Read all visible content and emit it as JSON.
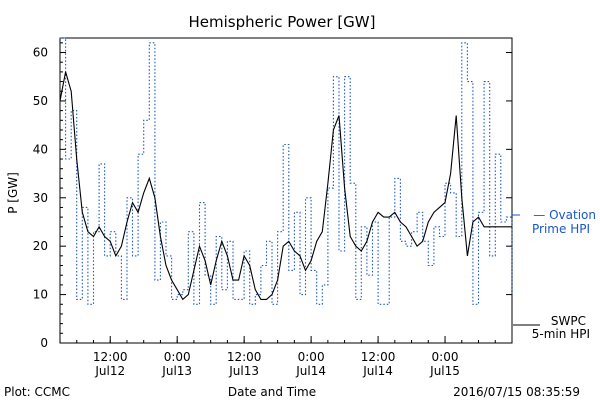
{
  "chart_data": {
    "type": "line",
    "title": "Hemispheric Power [GW]",
    "ylabel": "P [GW]",
    "xlabel": "Date and Time",
    "ylim": [
      0,
      63
    ],
    "xlim": [
      "2016-07-12 03:00",
      "2016-07-15 12:00"
    ],
    "grid": false,
    "yticks": [
      0,
      10,
      20,
      30,
      40,
      50,
      60
    ],
    "xticks": [
      {
        "x": "2016-07-12 12:00",
        "line1": "12:00",
        "line2": "Jul12"
      },
      {
        "x": "2016-07-13 00:00",
        "line1": "0:00",
        "line2": "Jul13"
      },
      {
        "x": "2016-07-13 12:00",
        "line1": "12:00",
        "line2": "Jul13"
      },
      {
        "x": "2016-07-14 00:00",
        "line1": "0:00",
        "line2": "Jul14"
      },
      {
        "x": "2016-07-14 12:00",
        "line1": "12:00",
        "line2": "Jul14"
      },
      {
        "x": "2016-07-15 00:00",
        "line1": "0:00",
        "line2": "Jul15"
      }
    ],
    "series": [
      {
        "name": "Ovation Prime HPI",
        "color": "#1a56c8",
        "style": "dotted-step",
        "x": [
          "2016-07-12 03:00",
          "2016-07-12 04:00",
          "2016-07-12 05:00",
          "2016-07-12 06:00",
          "2016-07-12 07:00",
          "2016-07-12 08:00",
          "2016-07-12 09:00",
          "2016-07-12 10:00",
          "2016-07-12 11:00",
          "2016-07-12 12:00",
          "2016-07-12 13:00",
          "2016-07-12 14:00",
          "2016-07-12 15:00",
          "2016-07-12 16:00",
          "2016-07-12 17:00",
          "2016-07-12 18:00",
          "2016-07-12 19:00",
          "2016-07-12 20:00",
          "2016-07-12 21:00",
          "2016-07-12 22:00",
          "2016-07-12 23:00",
          "2016-07-13 00:00",
          "2016-07-13 01:00",
          "2016-07-13 02:00",
          "2016-07-13 03:00",
          "2016-07-13 04:00",
          "2016-07-13 05:00",
          "2016-07-13 06:00",
          "2016-07-13 07:00",
          "2016-07-13 08:00",
          "2016-07-13 09:00",
          "2016-07-13 10:00",
          "2016-07-13 11:00",
          "2016-07-13 12:00",
          "2016-07-13 13:00",
          "2016-07-13 14:00",
          "2016-07-13 15:00",
          "2016-07-13 16:00",
          "2016-07-13 17:00",
          "2016-07-13 18:00",
          "2016-07-13 19:00",
          "2016-07-13 20:00",
          "2016-07-13 21:00",
          "2016-07-13 22:00",
          "2016-07-13 23:00",
          "2016-07-14 00:00",
          "2016-07-14 01:00",
          "2016-07-14 02:00",
          "2016-07-14 03:00",
          "2016-07-14 04:00",
          "2016-07-14 05:00",
          "2016-07-14 06:00",
          "2016-07-14 07:00",
          "2016-07-14 08:00",
          "2016-07-14 09:00",
          "2016-07-14 10:00",
          "2016-07-14 11:00",
          "2016-07-14 12:00",
          "2016-07-14 13:00",
          "2016-07-14 14:00",
          "2016-07-14 15:00",
          "2016-07-14 16:00",
          "2016-07-14 17:00",
          "2016-07-14 18:00",
          "2016-07-14 19:00",
          "2016-07-14 20:00",
          "2016-07-14 21:00",
          "2016-07-14 22:00",
          "2016-07-14 23:00",
          "2016-07-15 00:00",
          "2016-07-15 01:00",
          "2016-07-15 02:00",
          "2016-07-15 03:00",
          "2016-07-15 04:00",
          "2016-07-15 05:00",
          "2016-07-15 06:00",
          "2016-07-15 07:00",
          "2016-07-15 08:00",
          "2016-07-15 09:00",
          "2016-07-15 10:00",
          "2016-07-15 11:00",
          "2016-07-15 12:00"
        ],
        "values": [
          63,
          38,
          48,
          9,
          28,
          8,
          23,
          37,
          18,
          23,
          18,
          9,
          30,
          18,
          39,
          46,
          62,
          13,
          25,
          18,
          9,
          10,
          11,
          23,
          8,
          29,
          14,
          8,
          22,
          11,
          21,
          9,
          9,
          19,
          8,
          10,
          16,
          21,
          8,
          23,
          41,
          15,
          27,
          10,
          30,
          15,
          8,
          12,
          32,
          55,
          19,
          55,
          33,
          9,
          24,
          14,
          25,
          8,
          8,
          26,
          34,
          21,
          20,
          23,
          27,
          21,
          16,
          24,
          22,
          33,
          31,
          22,
          62,
          54,
          8,
          27,
          54,
          18,
          39,
          25,
          26,
          10
        ]
      },
      {
        "name": "SWPC 5-min HPI",
        "color": "#000000",
        "style": "solid",
        "x": [
          "2016-07-12 03:00",
          "2016-07-12 04:00",
          "2016-07-12 05:00",
          "2016-07-12 06:00",
          "2016-07-12 07:00",
          "2016-07-12 08:00",
          "2016-07-12 09:00",
          "2016-07-12 10:00",
          "2016-07-12 11:00",
          "2016-07-12 12:00",
          "2016-07-12 13:00",
          "2016-07-12 14:00",
          "2016-07-12 15:00",
          "2016-07-12 16:00",
          "2016-07-12 17:00",
          "2016-07-12 18:00",
          "2016-07-12 19:00",
          "2016-07-12 20:00",
          "2016-07-12 21:00",
          "2016-07-12 22:00",
          "2016-07-12 23:00",
          "2016-07-13 00:00",
          "2016-07-13 01:00",
          "2016-07-13 02:00",
          "2016-07-13 03:00",
          "2016-07-13 04:00",
          "2016-07-13 05:00",
          "2016-07-13 06:00",
          "2016-07-13 07:00",
          "2016-07-13 08:00",
          "2016-07-13 09:00",
          "2016-07-13 10:00",
          "2016-07-13 11:00",
          "2016-07-13 12:00",
          "2016-07-13 13:00",
          "2016-07-13 14:00",
          "2016-07-13 15:00",
          "2016-07-13 16:00",
          "2016-07-13 17:00",
          "2016-07-13 18:00",
          "2016-07-13 19:00",
          "2016-07-13 20:00",
          "2016-07-13 21:00",
          "2016-07-13 22:00",
          "2016-07-13 23:00",
          "2016-07-14 00:00",
          "2016-07-14 01:00",
          "2016-07-14 02:00",
          "2016-07-14 03:00",
          "2016-07-14 04:00",
          "2016-07-14 05:00",
          "2016-07-14 06:00",
          "2016-07-14 07:00",
          "2016-07-14 08:00",
          "2016-07-14 09:00",
          "2016-07-14 10:00",
          "2016-07-14 11:00",
          "2016-07-14 12:00",
          "2016-07-14 13:00",
          "2016-07-14 14:00",
          "2016-07-14 15:00",
          "2016-07-14 16:00",
          "2016-07-14 17:00",
          "2016-07-14 18:00",
          "2016-07-14 19:00",
          "2016-07-14 20:00",
          "2016-07-14 21:00",
          "2016-07-14 22:00",
          "2016-07-14 23:00",
          "2016-07-15 00:00",
          "2016-07-15 01:00",
          "2016-07-15 02:00",
          "2016-07-15 03:00",
          "2016-07-15 04:00",
          "2016-07-15 05:00",
          "2016-07-15 06:00",
          "2016-07-15 07:00",
          "2016-07-15 08:00",
          "2016-07-15 09:00",
          "2016-07-15 10:00",
          "2016-07-15 11:00",
          "2016-07-15 12:00"
        ],
        "values": [
          50,
          56,
          52,
          38,
          27,
          23,
          22,
          24,
          22,
          21,
          18,
          20,
          25,
          29,
          27,
          31,
          34,
          30,
          22,
          16,
          13,
          11,
          9,
          10,
          15,
          20,
          17,
          12,
          17,
          21,
          18,
          13,
          13,
          18,
          16,
          11,
          9,
          9,
          10,
          13,
          20,
          21,
          19,
          18,
          15,
          17,
          21,
          23,
          33,
          44,
          47,
          32,
          22,
          20,
          19,
          21,
          25,
          27,
          26,
          26,
          27,
          25,
          24,
          22,
          20,
          21,
          25,
          27,
          28,
          29,
          35,
          47,
          30,
          18,
          25,
          26,
          24,
          24,
          24,
          24,
          24,
          24
        ]
      }
    ],
    "legend": [
      {
        "label": "— Ovation",
        "label2": "Prime HPI"
      },
      {
        "label": "SWPC",
        "label2": "5-min HPI"
      }
    ]
  },
  "footer": {
    "plot_credit": "Plot: CCMC",
    "timestamp": "2016/07/15 08:35:59"
  }
}
